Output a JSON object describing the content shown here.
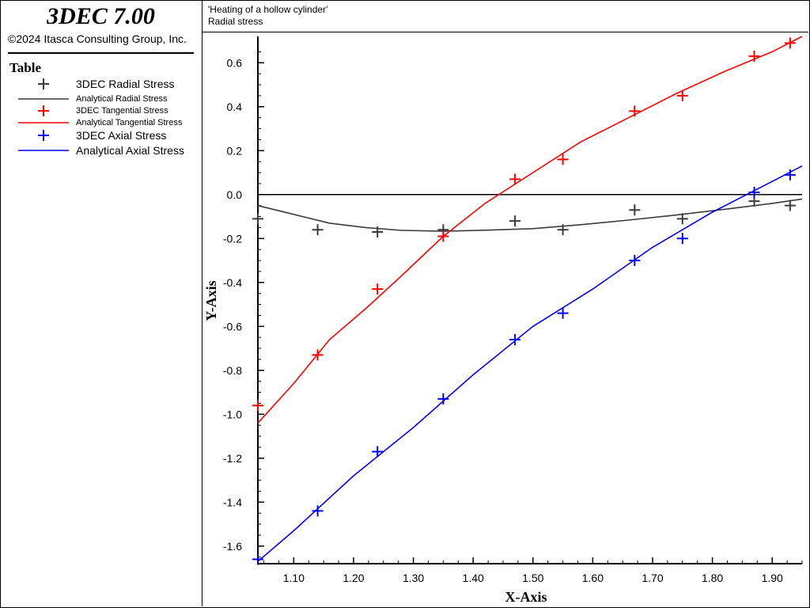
{
  "app": {
    "title": "3DEC 7.00",
    "copyright": "©2024 Itasca Consulting Group, Inc."
  },
  "legend": {
    "title": "Table",
    "entries": [
      {
        "label": "3DEC Radial Stress",
        "kind": "marker",
        "color": "#3c3c3c"
      },
      {
        "label": "Analytical Radial Stress",
        "kind": "line",
        "color": "#3c3c3c"
      },
      {
        "label": "3DEC Tangential Stress",
        "kind": "marker",
        "color": "#ff0000"
      },
      {
        "label": "Analytical Tangential Stress",
        "kind": "line",
        "color": "#ff0000"
      },
      {
        "label": "3DEC Axial Stress",
        "kind": "marker",
        "color": "#0000ff"
      },
      {
        "label": "Analytical Axial Stress",
        "kind": "line",
        "color": "#0000ff"
      }
    ]
  },
  "plot_header": {
    "title": "'Heating of a hollow cylinder'",
    "subtitle": "Radial stress"
  },
  "chart_data": {
    "type": "line",
    "xlabel": "X-Axis",
    "ylabel": "Y-Axis",
    "xlim": [
      1.04,
      1.95
    ],
    "ylim": [
      -1.68,
      0.72
    ],
    "xticks": [
      1.1,
      1.2,
      1.3,
      1.4,
      1.5,
      1.6,
      1.7,
      1.8,
      1.9
    ],
    "xtick_labels": [
      "1.10",
      "1.20",
      "1.30",
      "1.40",
      "1.50",
      "1.60",
      "1.70",
      "1.80",
      "1.90"
    ],
    "yticks": [
      0.6,
      0.4,
      0.2,
      0.0,
      -0.2,
      -0.4,
      -0.6,
      -0.8,
      -1.0,
      -1.2,
      -1.4,
      -1.6
    ],
    "ytick_labels": [
      "0.6",
      "0.4",
      "0.2",
      "0.0",
      "-0.2",
      "-0.4",
      "-0.6",
      "-0.8",
      "-1.0",
      "-1.2",
      "-1.4",
      "-1.6"
    ],
    "zero_line": true,
    "grid": false,
    "series": [
      {
        "name": "3DEC Radial Stress",
        "kind": "marker",
        "color": "#3c3c3c",
        "x": [
          1.04,
          1.14,
          1.24,
          1.35,
          1.47,
          1.55,
          1.67,
          1.75,
          1.87,
          1.93
        ],
        "y": [
          -0.11,
          -0.16,
          -0.17,
          -0.16,
          -0.12,
          -0.16,
          -0.07,
          -0.11,
          -0.03,
          -0.05
        ]
      },
      {
        "name": "Analytical Radial Stress",
        "kind": "line",
        "color": "#3c3c3c",
        "x": [
          1.04,
          1.1,
          1.16,
          1.22,
          1.28,
          1.35,
          1.42,
          1.5,
          1.58,
          1.66,
          1.74,
          1.82,
          1.9,
          1.95
        ],
        "y": [
          -0.05,
          -0.09,
          -0.13,
          -0.15,
          -0.163,
          -0.167,
          -0.162,
          -0.155,
          -0.137,
          -0.116,
          -0.093,
          -0.067,
          -0.04,
          -0.02
        ]
      },
      {
        "name": "3DEC Tangential Stress",
        "kind": "marker",
        "color": "#ff0000",
        "x": [
          1.04,
          1.14,
          1.24,
          1.35,
          1.47,
          1.55,
          1.67,
          1.75,
          1.87,
          1.93
        ],
        "y": [
          -0.96,
          -0.73,
          -0.43,
          -0.19,
          0.07,
          0.16,
          0.38,
          0.45,
          0.63,
          0.69
        ]
      },
      {
        "name": "Analytical Tangential Stress",
        "kind": "line",
        "color": "#ff0000",
        "x": [
          1.04,
          1.1,
          1.16,
          1.22,
          1.28,
          1.35,
          1.42,
          1.5,
          1.58,
          1.66,
          1.74,
          1.82,
          1.9,
          1.95
        ],
        "y": [
          -1.04,
          -0.86,
          -0.66,
          -0.52,
          -0.37,
          -0.19,
          -0.04,
          0.1,
          0.24,
          0.35,
          0.46,
          0.56,
          0.65,
          0.72
        ]
      },
      {
        "name": "3DEC Axial Stress",
        "kind": "marker",
        "color": "#0000ff",
        "x": [
          1.04,
          1.14,
          1.24,
          1.35,
          1.47,
          1.55,
          1.67,
          1.75,
          1.87,
          1.93
        ],
        "y": [
          -1.66,
          -1.44,
          -1.17,
          -0.93,
          -0.66,
          -0.54,
          -0.3,
          -0.2,
          0.01,
          0.09
        ]
      },
      {
        "name": "Analytical Axial Stress",
        "kind": "line",
        "color": "#0000ff",
        "x": [
          1.04,
          1.1,
          1.2,
          1.3,
          1.4,
          1.5,
          1.6,
          1.7,
          1.8,
          1.9,
          1.95
        ],
        "y": [
          -1.67,
          -1.53,
          -1.28,
          -1.06,
          -0.82,
          -0.6,
          -0.43,
          -0.24,
          -0.08,
          0.06,
          0.13
        ]
      }
    ]
  }
}
